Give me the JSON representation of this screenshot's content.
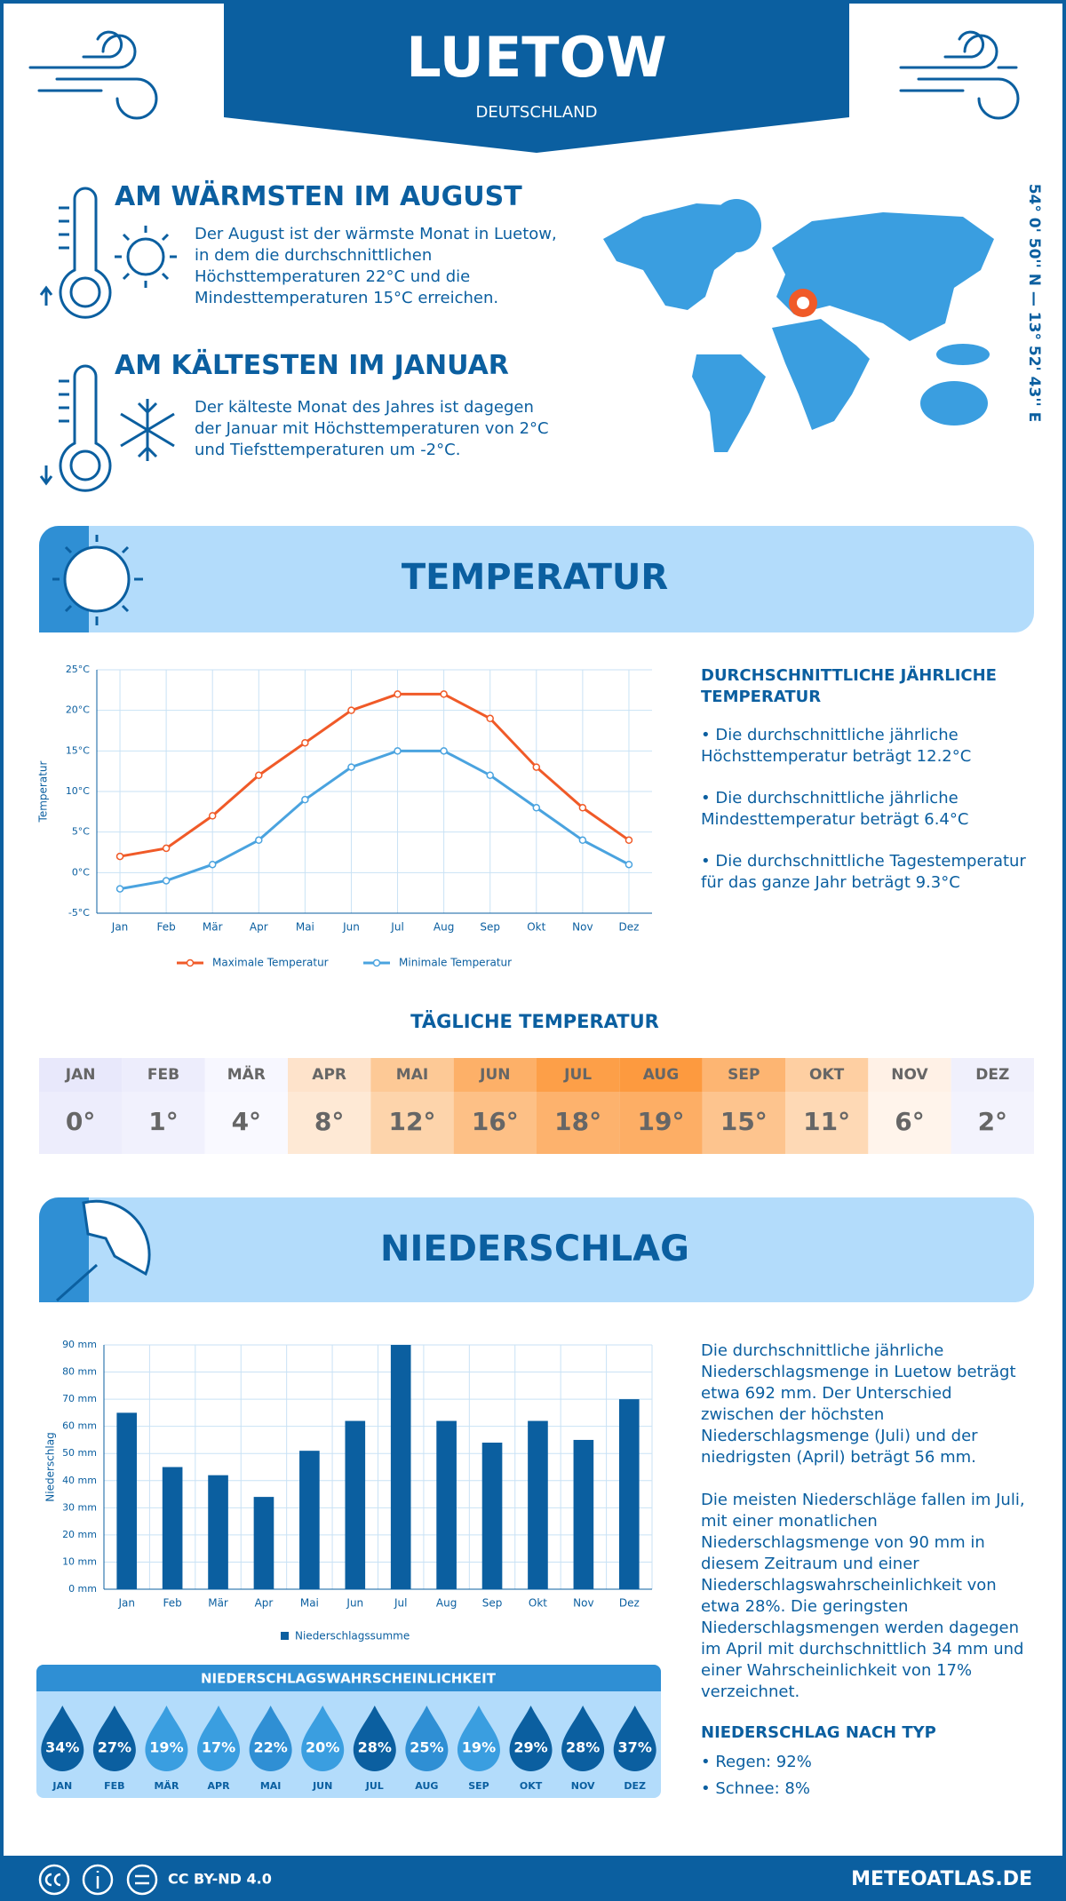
{
  "header": {
    "title": "LUETOW",
    "subtitle": "DEUTSCHLAND"
  },
  "warmest": {
    "title": "AM WÄRMSTEN IM AUGUST",
    "text": "Der August ist der wärmste Monat in Luetow, in dem die durchschnittlichen Höchsttemperaturen 22°C und die Mindesttemperaturen 15°C erreichen."
  },
  "coldest": {
    "title": "AM KÄLTESTEN IM JANUAR",
    "text": "Der kälteste Monat des Jahres ist dagegen der Januar mit Höchsttemperaturen von 2°C und Tiefsttemperaturen um -2°C."
  },
  "coordinates": "54° 0' 50'' N — 13° 52' 43'' E",
  "temperature_section": {
    "title": "TEMPERATUR",
    "stats_title": "DURCHSCHNITTLICHE JÄHRLICHE TEMPERATUR",
    "stats": [
      "• Die durchschnittliche jährliche Höchsttemperatur beträgt 12.2°C",
      "• Die durchschnittliche jährliche Mindesttemperatur beträgt 6.4°C",
      "• Die durchschnittliche Tagestemperatur für das ganze Jahr beträgt 9.3°C"
    ]
  },
  "daily_temperature": {
    "title": "TÄGLICHE TEMPERATUR",
    "months": [
      "JAN",
      "FEB",
      "MÄR",
      "APR",
      "MAI",
      "JUN",
      "JUL",
      "AUG",
      "SEP",
      "OKT",
      "NOV",
      "DEZ"
    ],
    "values": [
      "0°",
      "1°",
      "4°",
      "8°",
      "12°",
      "16°",
      "18°",
      "19°",
      "15°",
      "11°",
      "6°",
      "2°"
    ],
    "colors": [
      "#e8e8fb",
      "#ededfc",
      "#f7f7ff",
      "#fee3cb",
      "#fdc996",
      "#fdb068",
      "#fd9f48",
      "#fd9a3f",
      "#fdb572",
      "#fecfa2",
      "#fff1e6",
      "#f0f0fc"
    ]
  },
  "precipitation_section": {
    "title": "NIEDERSCHLAG",
    "paragraphs": [
      "Die durchschnittliche jährliche Niederschlagsmenge in Luetow beträgt etwa 692 mm. Der Unterschied zwischen der höchsten Niederschlagsmenge (Juli) und der niedrigsten (April) beträgt 56 mm.",
      "Die meisten Niederschläge fallen im Juli, mit einer monatlichen Niederschlagsmenge von 90 mm in diesem Zeitraum und einer Niederschlagswahrscheinlichkeit von etwa 28%. Die geringsten Niederschlagsmengen werden dagegen im April mit durchschnittlich 34 mm und einer Wahrscheinlichkeit von 17% verzeichnet."
    ],
    "type_title": "NIEDERSCHLAG NACH TYP",
    "types": [
      "• Regen: 92%",
      "• Schnee: 8%"
    ]
  },
  "precipitation_probability": {
    "title": "NIEDERSCHLAGSWAHRSCHEINLICHKEIT",
    "months": [
      "JAN",
      "FEB",
      "MÄR",
      "APR",
      "MAI",
      "JUN",
      "JUL",
      "AUG",
      "SEP",
      "OKT",
      "NOV",
      "DEZ"
    ],
    "values": [
      "34%",
      "27%",
      "19%",
      "17%",
      "22%",
      "20%",
      "28%",
      "25%",
      "19%",
      "29%",
      "28%",
      "37%"
    ],
    "colors": [
      "#0b5fa0",
      "#0b5fa0",
      "#3a9ee0",
      "#3a9ee0",
      "#2f8fd4",
      "#3a9ee0",
      "#0b5fa0",
      "#2f8fd4",
      "#3a9ee0",
      "#0b5fa0",
      "#0b5fa0",
      "#0b5fa0"
    ]
  },
  "footer": {
    "license": "CC BY-ND 4.0",
    "site": "METEOATLAS.DE"
  },
  "chart_data": [
    {
      "type": "line",
      "y_label": "Temperatur",
      "categories": [
        "Jan",
        "Feb",
        "Mär",
        "Apr",
        "Mai",
        "Jun",
        "Jul",
        "Aug",
        "Sep",
        "Okt",
        "Nov",
        "Dez"
      ],
      "series": [
        {
          "name": "Maximale Temperatur",
          "color": "#f05a28",
          "values": [
            2,
            3,
            7,
            12,
            16,
            20,
            22,
            22,
            19,
            13,
            8,
            4
          ]
        },
        {
          "name": "Minimale Temperatur",
          "color": "#4aa3df",
          "values": [
            -2,
            -1,
            1,
            4,
            9,
            13,
            15,
            15,
            12,
            8,
            4,
            1
          ]
        }
      ],
      "ylim": [
        -5,
        25
      ],
      "yticks": [
        {
          "value": -5,
          "label": "-5°C"
        },
        {
          "value": 0,
          "label": "0°C"
        },
        {
          "value": 5,
          "label": "5°C"
        },
        {
          "value": 10,
          "label": "10°C"
        },
        {
          "value": 15,
          "label": "15°C"
        },
        {
          "value": 20,
          "label": "20°C"
        },
        {
          "value": 25,
          "label": "25°C"
        }
      ],
      "grid": true
    },
    {
      "type": "bar",
      "y_label": "Niederschlag",
      "categories": [
        "Jan",
        "Feb",
        "Mär",
        "Apr",
        "Mai",
        "Jun",
        "Jul",
        "Aug",
        "Sep",
        "Okt",
        "Nov",
        "Dez"
      ],
      "series": [
        {
          "name": "Niederschlagssumme",
          "color": "#0b5fa0",
          "values": [
            65,
            45,
            42,
            34,
            51,
            62,
            90,
            62,
            54,
            62,
            55,
            70
          ]
        }
      ],
      "ylim": [
        0,
        90
      ],
      "yticks": [
        {
          "value": 0,
          "label": "0 mm"
        },
        {
          "value": 10,
          "label": "10 mm"
        },
        {
          "value": 20,
          "label": "20 mm"
        },
        {
          "value": 30,
          "label": "30 mm"
        },
        {
          "value": 40,
          "label": "40 mm"
        },
        {
          "value": 50,
          "label": "50 mm"
        },
        {
          "value": 60,
          "label": "60 mm"
        },
        {
          "value": 70,
          "label": "70 mm"
        },
        {
          "value": 80,
          "label": "80 mm"
        },
        {
          "value": 90,
          "label": "90 mm"
        }
      ],
      "grid": true
    }
  ]
}
